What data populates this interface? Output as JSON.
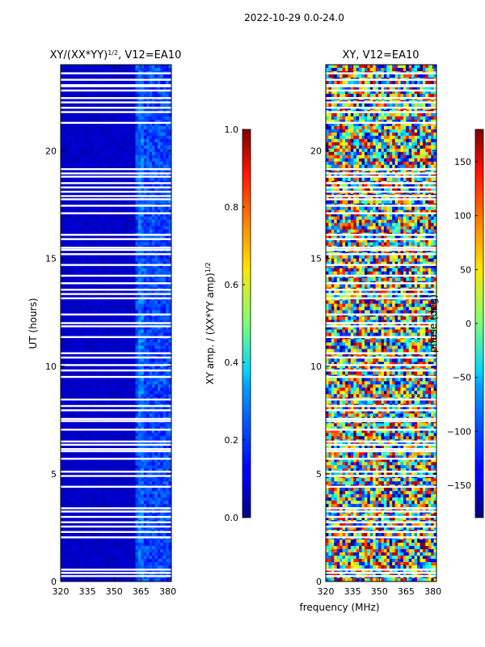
{
  "suptitle": "2022-10-29 0.0-24.0",
  "chart_data": [
    {
      "type": "heatmap",
      "title": "XY/(XX*YY)",
      "title_sup": "1/2",
      "title_suffix": ", V12=EA10",
      "xlabel": "",
      "ylabel": "UT (hours)",
      "xlim": [
        320,
        382
      ],
      "ylim": [
        0,
        24
      ],
      "xticks": [
        320,
        335,
        350,
        365,
        380
      ],
      "yticks": [
        0,
        5,
        10,
        15,
        20
      ],
      "colorbar": {
        "label": "XY amp. / (XX*YY amp)",
        "label_sup": "1/2",
        "range": [
          0.0,
          1.0
        ],
        "ticks": [
          "0.0",
          "0.2",
          "0.4",
          "0.6",
          "0.8",
          "1.0"
        ],
        "colormap": "jet"
      },
      "description": "amplitude mostly low (~0.05-0.15), brighter channels 360-380 MHz"
    },
    {
      "type": "heatmap",
      "title": "XY, V12=EA10",
      "xlabel": "frequency (MHz)",
      "ylabel": "",
      "xlim": [
        320,
        382
      ],
      "ylim": [
        0,
        24
      ],
      "xticks": [
        320,
        335,
        350,
        365,
        380
      ],
      "yticks": [
        0,
        5,
        10,
        15,
        20
      ],
      "colorbar": {
        "label": "phase (deg)",
        "range": [
          -180,
          180
        ],
        "ticks": [
          "150",
          "100",
          "50",
          "0",
          "−50",
          "−100",
          "−150"
        ],
        "colormap": "jet"
      },
      "description": "phase noisy across full range -180..180 deg"
    }
  ],
  "flag_gaps_hours": [
    0.25,
    0.4,
    0.55,
    2.05,
    2.3,
    2.55,
    2.75,
    3.0,
    3.25,
    3.4,
    4.4,
    4.9,
    5.1,
    5.7,
    6.05,
    6.15,
    6.35,
    6.5,
    7.05,
    7.45,
    7.55,
    7.95,
    8.15,
    8.45,
    9.5,
    9.8,
    10.05,
    10.4,
    10.6,
    11.35,
    11.85,
    12.0,
    12.4,
    13.15,
    13.35,
    13.55,
    13.85,
    14.2,
    14.7,
    15.2,
    15.4,
    15.5,
    15.9,
    16.1,
    17.1,
    17.45,
    17.75,
    17.9,
    18.1,
    18.3,
    18.5,
    18.8,
    18.95,
    19.15,
    21.3,
    21.8,
    22.0,
    22.25,
    22.45,
    22.8,
    23.0,
    23.05,
    23.3,
    23.6
  ]
}
